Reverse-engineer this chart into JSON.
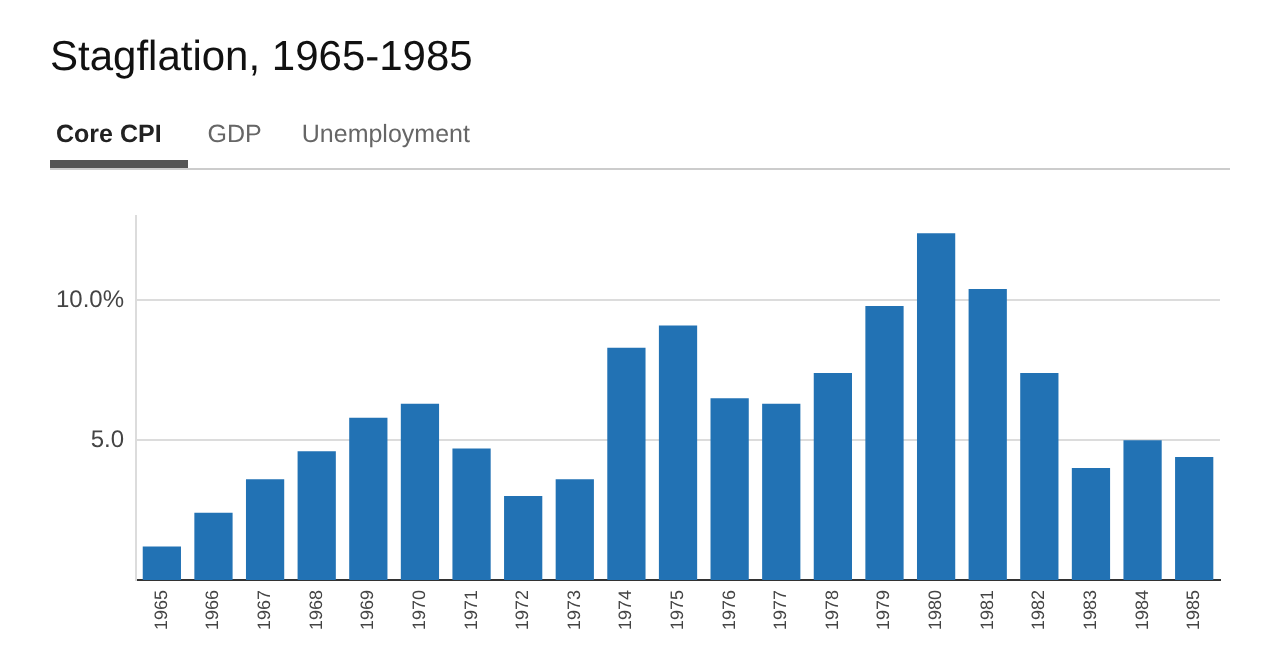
{
  "chart_data": {
    "type": "bar",
    "title": "Stagflation, 1965-1985",
    "annotations": [
      "Core CPI",
      "GDP",
      "Unemployment"
    ],
    "categories": [
      "1965",
      "1966",
      "1967",
      "1968",
      "1969",
      "1970",
      "1971",
      "1972",
      "1973",
      "1974",
      "1975",
      "1976",
      "1977",
      "1978",
      "1979",
      "1980",
      "1981",
      "1982",
      "1983",
      "1984",
      "1985"
    ],
    "values": [
      1.2,
      2.4,
      3.6,
      4.6,
      5.8,
      6.3,
      4.7,
      3.0,
      3.6,
      8.3,
      9.1,
      6.5,
      6.3,
      7.4,
      9.8,
      12.4,
      10.4,
      7.4,
      4.0,
      5.0,
      4.4
    ],
    "color": "#2272b4",
    "ylim": [
      0,
      13
    ],
    "yticks": [
      {
        "value": 5,
        "label": "5.0"
      },
      {
        "value": 10,
        "label": "10.0%"
      }
    ],
    "grid": "y",
    "legend": false
  }
}
